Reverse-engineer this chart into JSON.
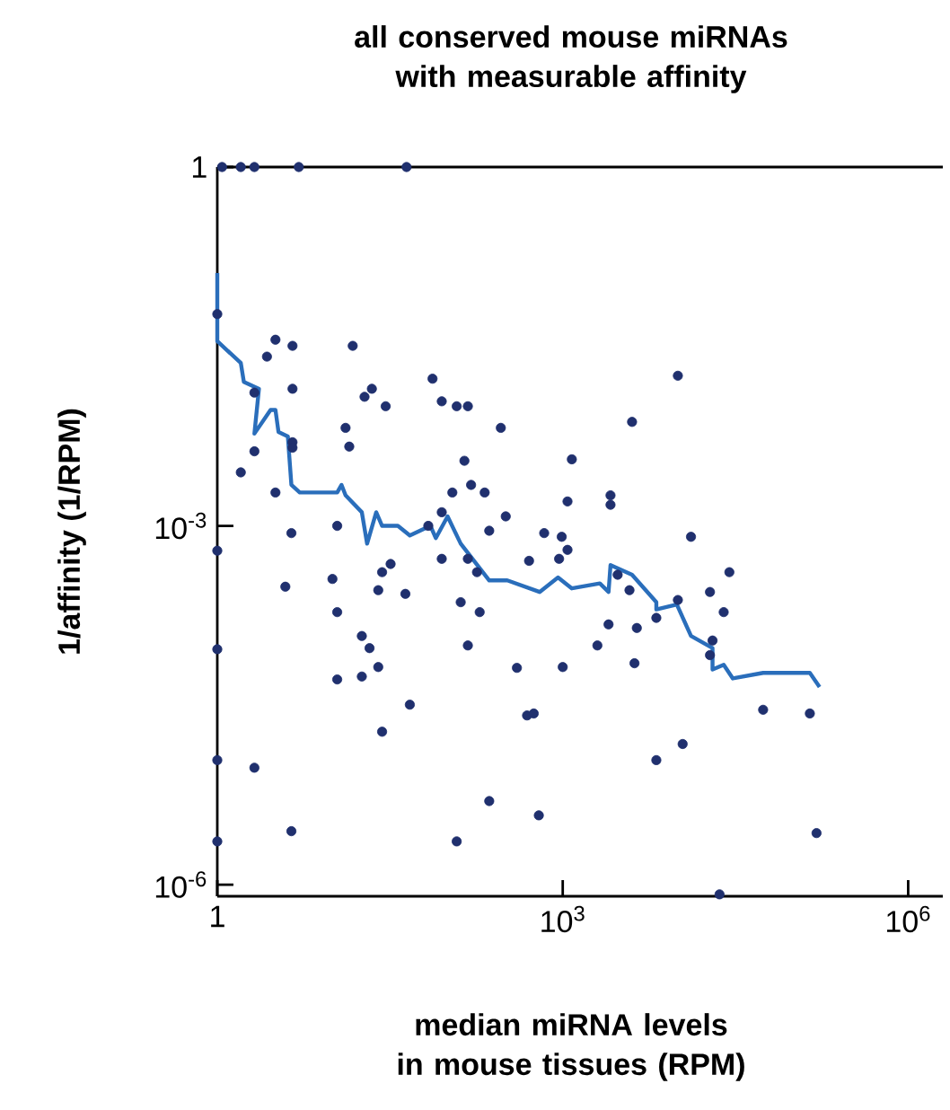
{
  "chart_data": {
    "type": "scatter",
    "title": "all conserved mouse miRNAs with measurable affinity",
    "xlabel": "median miRNA levels in mouse tissues (RPM)",
    "ylabel": "1/affinity (1/RPM)",
    "log": "xy",
    "grid": false,
    "xlim": [
      1,
      2000000
    ],
    "ylim": [
      8e-07,
      1
    ],
    "xticks": [
      1,
      {
        "value": 1000,
        "label": "10$^{3}$"
      },
      {
        "value": 1000000,
        "label": "10$^{6}$"
      }
    ],
    "yticks": [
      {
        "value": 1e-06,
        "label": "10$^{-6}$"
      },
      {
        "value": 0.001,
        "label": "10$^{-3}$"
      },
      1
    ],
    "series": [
      {
        "marker": "circle",
        "color": "#20306e",
        "x": [
          1.1,
          1.6,
          2.1,
          5.1,
          44,
          1.0,
          3.2,
          4.5,
          2.7,
          15,
          2.1,
          4.5,
          74,
          19,
          22,
          29,
          89,
          120,
          150,
          13,
          290,
          4.5,
          4.5,
          14,
          2.1,
          140,
          1200,
          1.6,
          3.2,
          110,
          160,
          210,
          1100,
          89,
          320,
          10000,
          4000,
          2600,
          2600,
          4.4,
          11,
          1.0,
          68,
          230,
          690,
          980,
          1100,
          89,
          150,
          510,
          930,
          32,
          27,
          180,
          3.9,
          10,
          25,
          43,
          130,
          190,
          11,
          18,
          21,
          1.0,
          150,
          400,
          1000,
          25,
          18,
          11,
          47,
          490,
          560,
          27,
          1.0,
          2.1,
          230,
          620,
          4.4,
          1.0,
          120,
          13000,
          28000,
          3000,
          3800,
          19000,
          10000,
          25000,
          6500,
          2500,
          4400,
          2000,
          20000,
          19000,
          4200,
          55000,
          140000,
          11000,
          6500,
          160000,
          23000
        ],
        "values": [
          1,
          1,
          1,
          1,
          1,
          0.059,
          0.036,
          0.032,
          0.026,
          0.032,
          0.013,
          0.014,
          0.017,
          0.012,
          0.014,
          0.01,
          0.011,
          0.01,
          0.01,
          0.0066,
          0.0066,
          0.005,
          0.0045,
          0.0046,
          0.0042,
          0.0035,
          0.0036,
          0.0028,
          0.0019,
          0.0019,
          0.0022,
          0.0019,
          0.0016,
          0.0013,
          0.0012,
          0.018,
          0.0074,
          0.0018,
          0.0015,
          0.00087,
          0.001,
          0.00062,
          0.001,
          0.00091,
          0.00087,
          0.00081,
          0.00063,
          0.00053,
          0.00053,
          0.00051,
          0.00053,
          0.00048,
          0.00041,
          0.00041,
          0.00031,
          0.00036,
          0.00029,
          0.00027,
          0.00023,
          0.00019,
          0.00019,
          0.00012,
          9.5e-05,
          9.3e-05,
          0.0001,
          6.5e-05,
          6.6e-05,
          6.6e-05,
          5.5e-05,
          5.2e-05,
          3.2e-05,
          2.6e-05,
          2.7e-05,
          1.9e-05,
          1.1e-05,
          9.5e-06,
          5e-06,
          3.8e-06,
          2.8e-06,
          2.3e-06,
          2.3e-06,
          0.00081,
          0.00041,
          0.00039,
          0.00029,
          0.00028,
          0.00024,
          0.00019,
          0.00017,
          0.00015,
          0.00014,
          0.0001,
          0.00011,
          8.3e-05,
          7.1e-05,
          2.9e-05,
          2.7e-05,
          1.5e-05,
          1.1e-05,
          2.7e-06,
          8.3e-07
        ]
      },
      {
        "type": "line",
        "marker": "none",
        "color": "#2a6ebb",
        "x": [
          1.0,
          1.0,
          1.6,
          1.7,
          2.3,
          2.1,
          2.9,
          3.2,
          3.4,
          4.1,
          4.4,
          5.2,
          11,
          12,
          13,
          18,
          20,
          24,
          27,
          37,
          47,
          71,
          79,
          100,
          130,
          230,
          330,
          630,
          910,
          1200,
          2100,
          2500,
          2600,
          4000,
          6500,
          6500,
          9800,
          13000,
          20000,
          20000,
          25000,
          30000,
          55000,
          140000,
          170000
        ],
        "values": [
          0.13,
          0.035,
          0.023,
          0.016,
          0.014,
          0.0059,
          0.0093,
          0.0093,
          0.0061,
          0.0056,
          0.0022,
          0.0019,
          0.0019,
          0.0022,
          0.0018,
          0.0013,
          0.00071,
          0.0013,
          0.001,
          0.001,
          0.00083,
          0.001,
          0.00079,
          0.0012,
          0.00071,
          0.00035,
          0.00035,
          0.00028,
          0.00037,
          0.0003,
          0.00033,
          0.00028,
          0.00047,
          0.00039,
          0.00023,
          0.0002,
          0.00022,
          0.00012,
          9.5e-05,
          6.3e-05,
          6.9e-05,
          5.3e-05,
          5.9e-05,
          5.9e-05,
          4.5e-05
        ]
      }
    ]
  }
}
